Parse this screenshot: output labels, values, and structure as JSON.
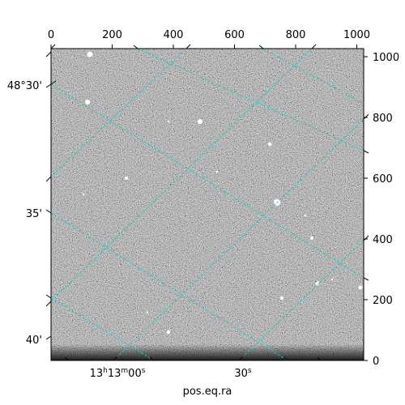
{
  "figure": {
    "x_axis_label": "pos.eq.ra",
    "pixel_axis_top": {
      "ticks": [
        "0",
        "200",
        "400",
        "600",
        "800",
        "1000"
      ],
      "values": [
        0,
        200,
        400,
        600,
        800,
        1000
      ],
      "range": [
        0,
        1024
      ]
    },
    "pixel_axis_right": {
      "ticks": [
        "0",
        "200",
        "400",
        "600",
        "800",
        "1000"
      ],
      "values": [
        0,
        200,
        400,
        600,
        800,
        1000
      ],
      "range": [
        0,
        1024
      ]
    },
    "dec_ticks_left": [
      "48°30'",
      "35'",
      "40'"
    ],
    "ra_ticks_bottom": {
      "main": "13",
      "h": "h",
      "min": "13",
      "m": "m",
      "sec": "00",
      "s": "s",
      "second_value": "30",
      "second_s": "s"
    },
    "grid_color": "#20c8c8",
    "image_colormap": "gray"
  }
}
